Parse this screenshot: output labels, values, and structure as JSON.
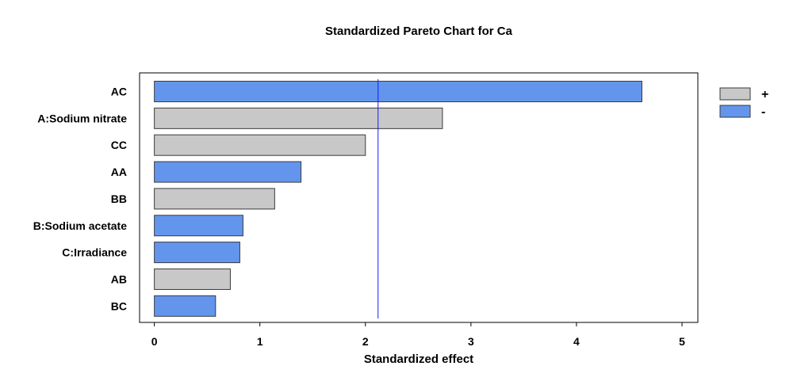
{
  "chart_data": {
    "type": "bar",
    "orientation": "horizontal",
    "title": "Standardized Pareto Chart for Ca",
    "xlabel": "Standardized effect",
    "ylabel": "",
    "xlim": [
      -0.14,
      5.15
    ],
    "x_ticks": [
      0,
      1,
      2,
      3,
      4,
      5
    ],
    "x_tick_labels": [
      "0",
      "1",
      "2",
      "3",
      "4",
      "5"
    ],
    "grid": false,
    "legend_position": "top-right",
    "reference_line": {
      "value": 2.12,
      "color": "#1a1aff"
    },
    "series": [
      {
        "name": "+",
        "color": "#c8c8c8"
      },
      {
        "name": "-",
        "color": "#6495ed"
      }
    ],
    "categories": [
      "AC",
      "A:Sodium nitrate",
      "CC",
      "AA",
      "BB",
      "B:Sodium acetate",
      "C:Irradiance",
      "AB",
      "BC"
    ],
    "values": [
      4.62,
      2.73,
      2.0,
      1.39,
      1.14,
      0.84,
      0.81,
      0.72,
      0.58
    ],
    "signs": [
      "-",
      "+",
      "+",
      "-",
      "+",
      "-",
      "-",
      "+",
      "-"
    ]
  }
}
